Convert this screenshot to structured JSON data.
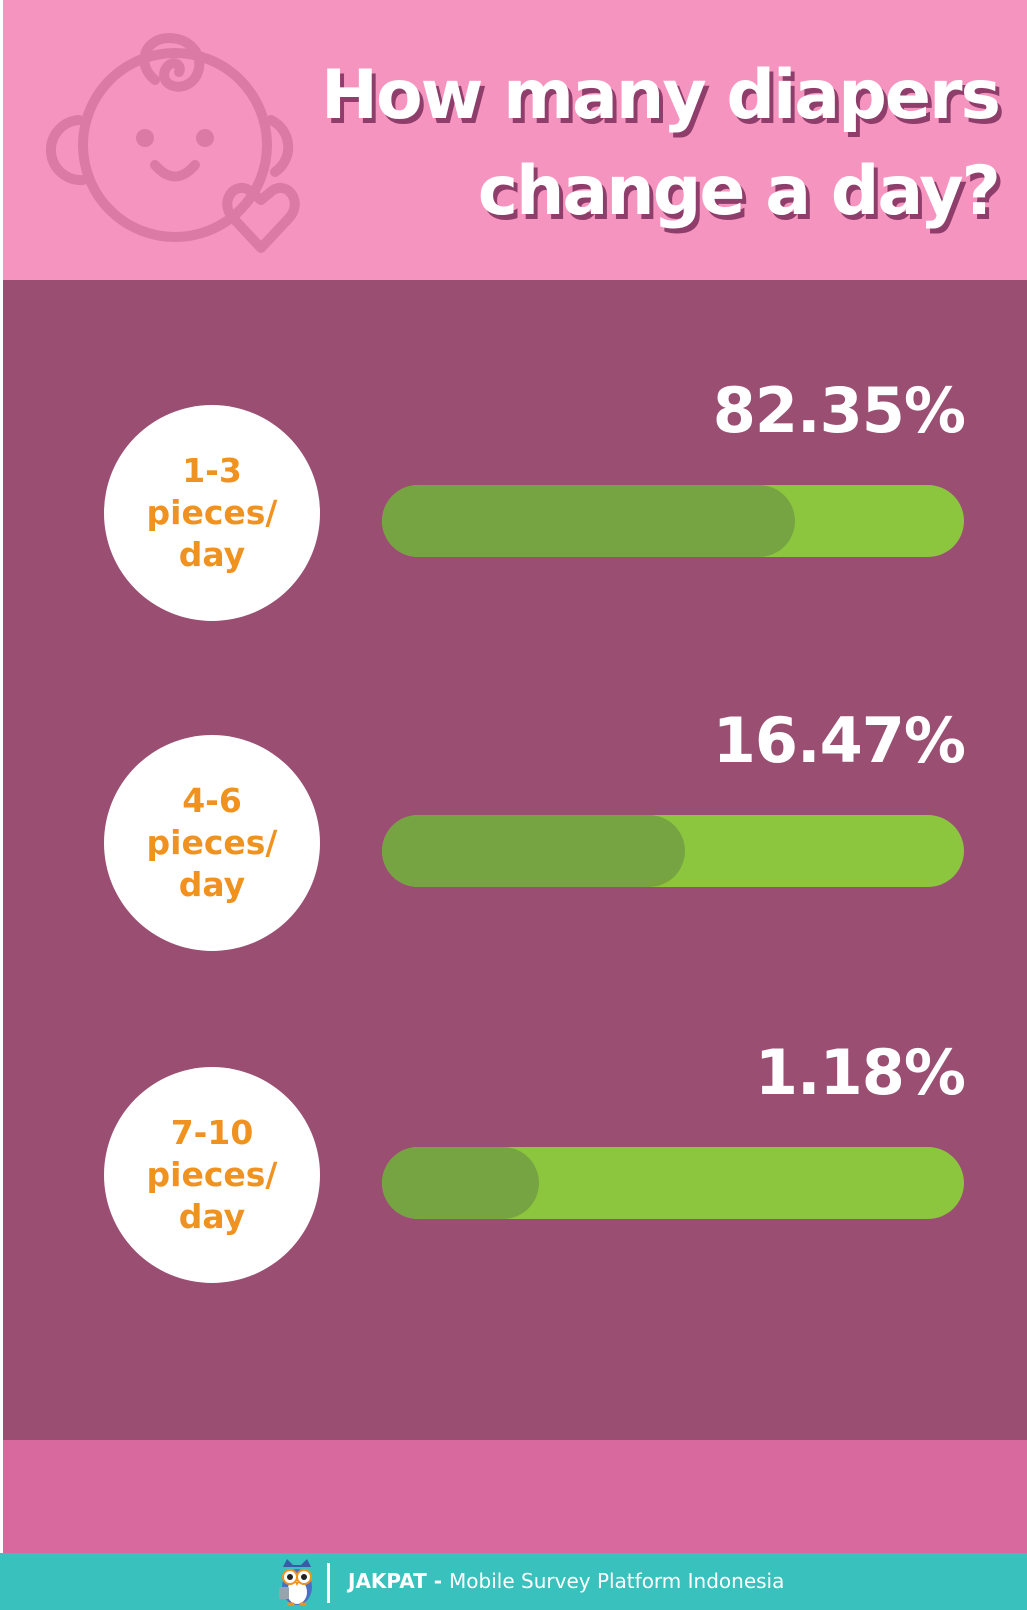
{
  "header": {
    "title_lines": [
      "How many diapers",
      "change a day?"
    ],
    "background_color": "#f595bf",
    "icon": "baby-face-heart-icon"
  },
  "chart_data": {
    "type": "bar",
    "orientation": "horizontal",
    "title": "How many diapers change a day?",
    "categories": [
      "1-3 pieces/ day",
      "4-6 pieces/ day",
      "7-10 pieces/ day"
    ],
    "category_lines": [
      [
        "1-3",
        "pieces/",
        "day"
      ],
      [
        "4-6",
        "pieces/",
        "day"
      ],
      [
        "7-10",
        "pieces/",
        "day"
      ]
    ],
    "values": [
      82.35,
      16.47,
      1.18
    ],
    "value_labels": [
      "82.35%",
      "16.47%",
      "1.18%"
    ],
    "shown_fill_fraction": [
      0.71,
      0.52,
      0.27
    ],
    "unit": "%",
    "colors": {
      "track": "#8cc63f",
      "fill": "#76a443",
      "panel": "#9a4f72",
      "label_circle": "#ffffff",
      "label_text": "#f0921f"
    }
  },
  "footer": {
    "brand": "JAKPAT",
    "separator": " - ",
    "tagline": "Mobile Survey Platform Indonesia",
    "logo_icon": "owl-mascot-icon",
    "background_color": "#39c1bd",
    "band_color": "#d8699f"
  }
}
